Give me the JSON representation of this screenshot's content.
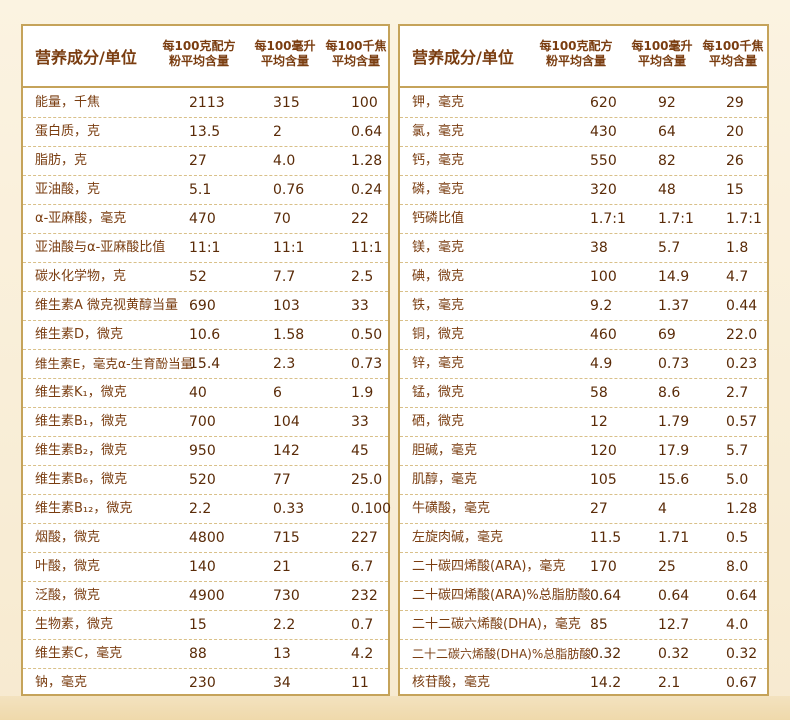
{
  "left": {
    "header": {
      "name": "营养成分/单位",
      "col1": [
        "每100克配方",
        "粉平均含量"
      ],
      "col2": [
        "每100毫升",
        "平均含量"
      ],
      "col3": [
        "每100千焦",
        "平均含量"
      ]
    },
    "rows": [
      {
        "name": "能量，千焦",
        "v1": "2113",
        "v2": "315",
        "v3": "100"
      },
      {
        "name": "蛋白质，克",
        "v1": "13.5",
        "v2": "2",
        "v3": "0.64"
      },
      {
        "name": "脂肪，克",
        "v1": "27",
        "v2": "4.0",
        "v3": "1.28"
      },
      {
        "name": "亚油酸，克",
        "v1": "5.1",
        "v2": "0.76",
        "v3": "0.24"
      },
      {
        "name": "α-亚麻酸，毫克",
        "v1": "470",
        "v2": "70",
        "v3": "22"
      },
      {
        "name": "亚油酸与α-亚麻酸比值",
        "v1": "11:1",
        "v2": "11:1",
        "v3": "11:1"
      },
      {
        "name": "碳水化学物，克",
        "v1": "52",
        "v2": "7.7",
        "v3": "2.5"
      },
      {
        "name": "维生素A 微克视黄醇当量",
        "v1": "690",
        "v2": "103",
        "v3": "33"
      },
      {
        "name": "维生素D，微克",
        "v1": "10.6",
        "v2": "1.58",
        "v3": "0.50"
      },
      {
        "name": "维生素E，毫克α-生育酚当量",
        "v1": "15.4",
        "v2": "2.3",
        "v3": "0.73"
      },
      {
        "name": "维生素K₁，微克",
        "v1": "40",
        "v2": "6",
        "v3": "1.9"
      },
      {
        "name": "维生素B₁，微克",
        "v1": "700",
        "v2": "104",
        "v3": "33"
      },
      {
        "name": "维生素B₂，微克",
        "v1": "950",
        "v2": "142",
        "v3": "45"
      },
      {
        "name": "维生素B₆，微克",
        "v1": "520",
        "v2": "77",
        "v3": "25.0"
      },
      {
        "name": "维生素B₁₂，微克",
        "v1": "2.2",
        "v2": "0.33",
        "v3": "0.100"
      },
      {
        "name": "烟酸，微克",
        "v1": "4800",
        "v2": "715",
        "v3": "227"
      },
      {
        "name": "叶酸，微克",
        "v1": "140",
        "v2": "21",
        "v3": "6.7"
      },
      {
        "name": "泛酸，微克",
        "v1": "4900",
        "v2": "730",
        "v3": "232"
      },
      {
        "name": "生物素，微克",
        "v1": "15",
        "v2": "2.2",
        "v3": "0.7"
      },
      {
        "name": "维生素C，毫克",
        "v1": "88",
        "v2": "13",
        "v3": "4.2"
      },
      {
        "name": "钠，毫克",
        "v1": "230",
        "v2": "34",
        "v3": "11"
      }
    ]
  },
  "right": {
    "header": {
      "name": "营养成分/单位",
      "col1": [
        "每100克配方",
        "粉平均含量"
      ],
      "col2": [
        "每100毫升",
        "平均含量"
      ],
      "col3": [
        "每100千焦",
        "平均含量"
      ]
    },
    "rows": [
      {
        "name": "钾，毫克",
        "v1": "620",
        "v2": "92",
        "v3": "29"
      },
      {
        "name": "氯，毫克",
        "v1": "430",
        "v2": "64",
        "v3": "20"
      },
      {
        "name": "钙，毫克",
        "v1": "550",
        "v2": "82",
        "v3": "26"
      },
      {
        "name": "磷，毫克",
        "v1": "320",
        "v2": "48",
        "v3": "15"
      },
      {
        "name": "钙磷比值",
        "v1": "1.7:1",
        "v2": "1.7:1",
        "v3": "1.7:1"
      },
      {
        "name": "镁，毫克",
        "v1": "38",
        "v2": "5.7",
        "v3": "1.8"
      },
      {
        "name": "碘，微克",
        "v1": "100",
        "v2": "14.9",
        "v3": "4.7"
      },
      {
        "name": "铁，毫克",
        "v1": "9.2",
        "v2": "1.37",
        "v3": "0.44"
      },
      {
        "name": "铜，微克",
        "v1": "460",
        "v2": "69",
        "v3": "22.0"
      },
      {
        "name": "锌，毫克",
        "v1": "4.9",
        "v2": "0.73",
        "v3": "0.23"
      },
      {
        "name": "锰，微克",
        "v1": "58",
        "v2": "8.6",
        "v3": "2.7"
      },
      {
        "name": "硒，微克",
        "v1": "12",
        "v2": "1.79",
        "v3": "0.57"
      },
      {
        "name": "胆碱，毫克",
        "v1": "120",
        "v2": "17.9",
        "v3": "5.7"
      },
      {
        "name": "肌醇，毫克",
        "v1": "105",
        "v2": "15.6",
        "v3": "5.0"
      },
      {
        "name": "牛磺酸，毫克",
        "v1": "27",
        "v2": "4",
        "v3": "1.28"
      },
      {
        "name": "左旋肉碱，毫克",
        "v1": "11.5",
        "v2": "1.71",
        "v3": "0.5"
      },
      {
        "name": "二十碳四烯酸(ARA)，毫克",
        "v1": "170",
        "v2": "25",
        "v3": "8.0"
      },
      {
        "name": "二十碳四烯酸(ARA)%总脂肪酸",
        "v1": "0.64",
        "v2": "0.64",
        "v3": "0.64"
      },
      {
        "name": "二十二碳六烯酸(DHA)，毫克",
        "v1": "85",
        "v2": "12.7",
        "v3": "4.0"
      },
      {
        "name": "二十二碳六烯酸(DHA)%总脂肪酸",
        "v1": "0.32",
        "v2": "0.32",
        "v3": "0.32"
      },
      {
        "name": "核苷酸，毫克",
        "v1": "14.2",
        "v2": "2.1",
        "v3": "0.67"
      }
    ]
  }
}
